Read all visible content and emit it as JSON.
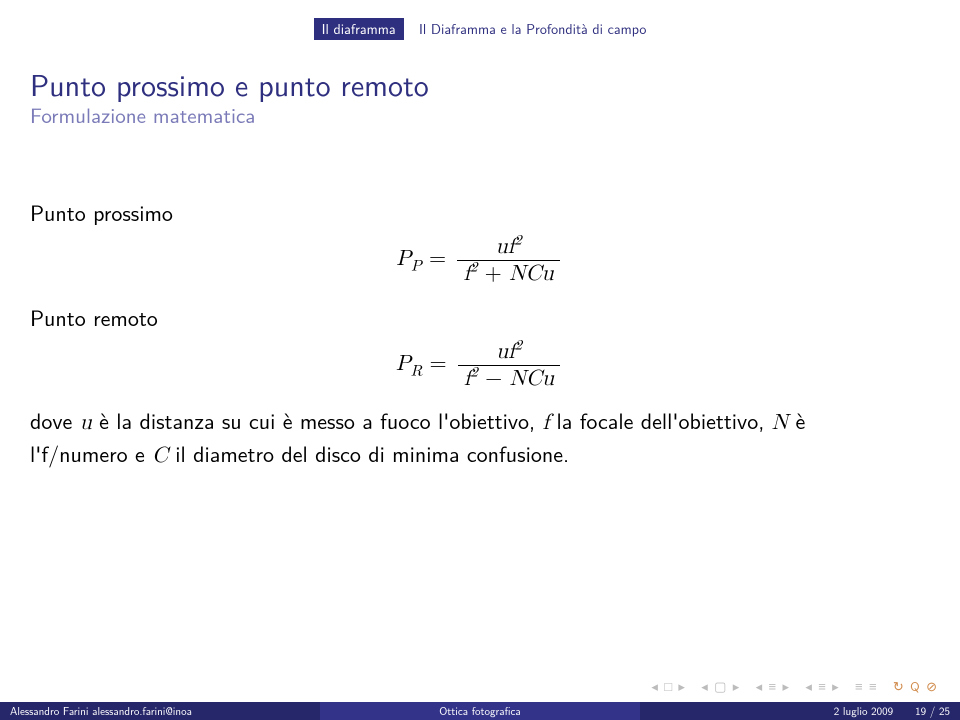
{
  "header": {
    "section": "Il diaframma",
    "subsection": "Il Diaframma e la Profondità di campo"
  },
  "title": "Punto prossimo e punto remoto",
  "subtitle": "Formulazione matematica",
  "labels": {
    "prossimo": "Punto prossimo",
    "remoto": "Punto remoto"
  },
  "eq": {
    "pp": {
      "lhs_base": "P",
      "lhs_sub": "P",
      "num_pre": "uf",
      "num_sup": "2",
      "den_pre": "f",
      "den_sup": "2",
      "den_op": " + ",
      "den_post": "NCu"
    },
    "pr": {
      "lhs_base": "P",
      "lhs_sub": "R",
      "num_pre": "uf",
      "num_sup": "2",
      "den_pre": "f",
      "den_sup": "2",
      "den_op": " − ",
      "den_post": "NCu"
    }
  },
  "body": {
    "t1": "dove ",
    "v1": "u",
    "t2": " è la distanza su cui è messo a fuoco l'obiettivo, ",
    "v2": "f",
    "t3": " la focale dell'obiettivo, ",
    "v3": "N",
    "t4": " è l'f/numero e ",
    "v4": "C",
    "t5": " il diametro del disco di minima confusione."
  },
  "footer": {
    "author": "Alessandro Farini alessandro.farini@inoa",
    "talk": "Ottica fotografica",
    "date": "2 luglio 2009",
    "page": "19 / 25"
  },
  "nav": {
    "g1a": "◂",
    "g1b": "□",
    "g1c": "▸",
    "g2a": "◂",
    "g2b": "▢",
    "g2c": "▸",
    "g3a": "◂",
    "g3b": "≡",
    "g3c": "▸",
    "g4a": "◂",
    "g4b": "≡",
    "g4c": "▸",
    "g5a": "≡",
    "g5b": "≡",
    "g6a": "↻",
    "g6b": "Q",
    "g6c": "⊘"
  }
}
